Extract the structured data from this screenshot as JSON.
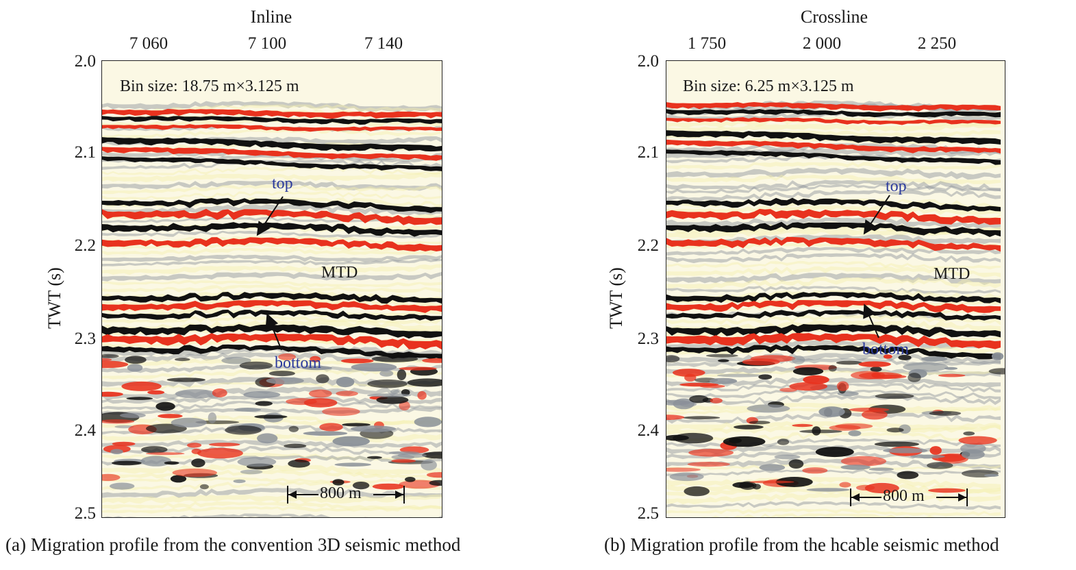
{
  "panels": [
    {
      "axis_title": "Inline",
      "x_ticks": [
        "7 060",
        "7 100",
        "7 140"
      ],
      "y_ticks": [
        "2.0",
        "2.1",
        "2.2",
        "2.3",
        "2.4",
        "2.5"
      ],
      "y_label": "TWT (s)",
      "bin_size": "Bin size: 18.75 m×3.125 m",
      "labels": {
        "top": "top",
        "mtd": "MTD",
        "bottom": "bottom"
      },
      "scale_bar": "800 m",
      "caption": "(a) Migration profile from the convention 3D seismic method"
    },
    {
      "axis_title": "Crossline",
      "x_ticks": [
        "1 750",
        "2 000",
        "2 250"
      ],
      "y_ticks": [
        "2.0",
        "2.1",
        "2.2",
        "2.3",
        "2.4",
        "2.5"
      ],
      "y_label": "TWT (s)",
      "bin_size": "Bin size: 6.25 m×3.125 m",
      "labels": {
        "top": "top",
        "mtd": "MTD",
        "bottom": "bottom"
      },
      "scale_bar": "800 m",
      "caption": "(b) Migration profile from the hcable seismic method"
    }
  ],
  "colors": {
    "red": "#e8321e",
    "black": "#111111",
    "yellow": "#f3efb0",
    "grey": "#8a9098",
    "annotation": "#2b3a9c"
  }
}
